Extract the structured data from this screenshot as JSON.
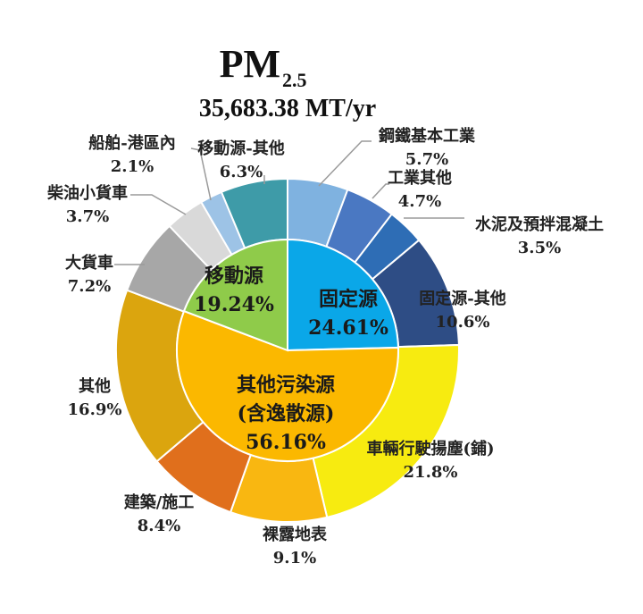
{
  "title": {
    "main": "PM",
    "subscript": "2.5",
    "total": "35,683.38 MT/yr"
  },
  "chart_data": {
    "type": "pie",
    "variant": "two-level donut (sunburst)",
    "inner": [
      {
        "name": "固定源",
        "value": 24.61,
        "label": "24.61%",
        "color": "#0AA7E8"
      },
      {
        "name": "其他污染源",
        "name2": "(含逸散源)",
        "value": 56.16,
        "label": "56.16%",
        "color": "#FBB800"
      },
      {
        "name": "移動源",
        "value": 19.24,
        "label": "19.24%",
        "color": "#8FCB4A"
      }
    ],
    "outer": [
      {
        "name": "鋼鐵基本工業",
        "value": 5.7,
        "label": "5.7%",
        "color": "#7FB2E0"
      },
      {
        "name": "工業其他",
        "value": 4.7,
        "label": "4.7%",
        "color": "#4A78C2"
      },
      {
        "name": "水泥及預拌混凝土",
        "value": 3.5,
        "label": "3.5%",
        "color": "#2E6DB5"
      },
      {
        "name": "固定源-其他",
        "value": 10.6,
        "label": "10.6%",
        "color": "#2E4D85"
      },
      {
        "name": "車輛行駛揚塵(鋪)",
        "value": 21.8,
        "label": "21.8%",
        "color": "#F7EB10"
      },
      {
        "name": "裸露地表",
        "value": 9.1,
        "label": "9.1%",
        "color": "#F9B711"
      },
      {
        "name": "建築/施工",
        "value": 8.4,
        "label": "8.4%",
        "color": "#E06F1C"
      },
      {
        "name": "其他",
        "value": 16.9,
        "label": "16.9%",
        "color": "#DBA50E"
      },
      {
        "name": "大貨車",
        "value": 7.2,
        "label": "7.2%",
        "color": "#A7A7A7"
      },
      {
        "name": "柴油小貨車",
        "value": 3.7,
        "label": "3.7%",
        "color": "#D9D9D9"
      },
      {
        "name": "船舶-港區內",
        "value": 2.1,
        "label": "2.1%",
        "color": "#9DC3E6"
      },
      {
        "name": "移動源-其他",
        "value": 6.3,
        "label": "6.3%",
        "color": "#3E9BA8"
      }
    ]
  }
}
